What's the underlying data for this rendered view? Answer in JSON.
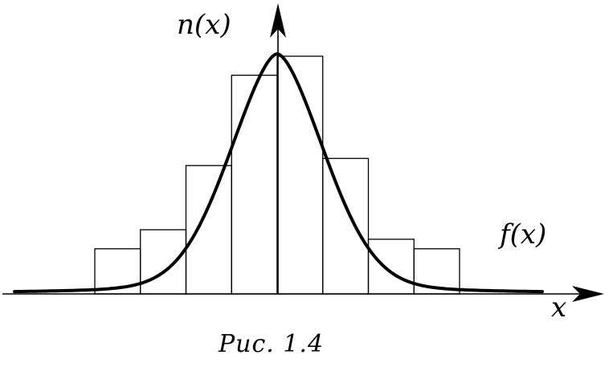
{
  "figure": {
    "labels": {
      "y_axis": "n(x)",
      "x_axis": "x",
      "curve": "f(x)"
    },
    "caption": "Рис. 1.4",
    "colors": {
      "ink": "#000000",
      "background": "#ffffff"
    }
  },
  "histogram": {
    "bins": 8,
    "relative_heights": [
      0.19,
      0.27,
      0.54,
      0.92,
      1.0,
      0.57,
      0.23,
      0.19
    ]
  },
  "curve_shape": "bell-shaped density with heavy tails"
}
